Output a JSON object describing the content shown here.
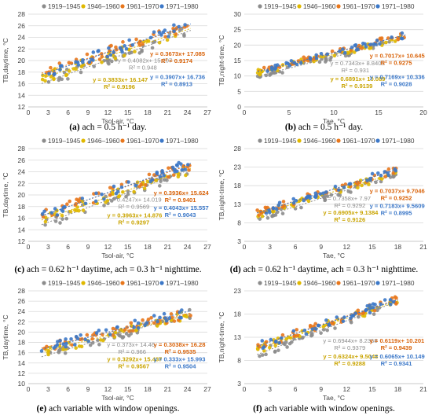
{
  "colors": {
    "1919–1945": "#8c8c8c",
    "1946–1960": "#e0b800",
    "1961–1970": "#e8771c",
    "1971–1980": "#3c78c8"
  },
  "chart_data": [
    {
      "type": "scatter",
      "caption": {
        "label": "(a)",
        "text": "ach = 0.5 h⁻¹ day."
      },
      "xlabel": "Tsol-air, °C",
      "ylabel": "TB,daytime, °C",
      "xlim": [
        0,
        27
      ],
      "ylim": [
        12,
        28
      ],
      "xticks": [
        0,
        3,
        6,
        9,
        12,
        15,
        18,
        21,
        24,
        27
      ],
      "yticks": [
        12,
        14,
        16,
        18,
        20,
        22,
        24,
        26,
        28
      ],
      "legend": [
        "1919–1945",
        "1946–1960",
        "1961–1970",
        "1971–1980"
      ],
      "series": [
        {
          "name": "1919–1945",
          "slope": 0.4082,
          "intercept": 15.207,
          "eq": "y = 0.4082x+ 15.207",
          "r2": "R² = 0.948"
        },
        {
          "name": "1946–1960",
          "slope": 0.3833,
          "intercept": 16.147,
          "eq": "y = 0.3833x+ 16.147",
          "r2": "R² = 0.9196"
        },
        {
          "name": "1961–1970",
          "slope": 0.3673,
          "intercept": 17.085,
          "eq": "y = 0.3673x+ 17.085",
          "r2": "R² = 0.9174"
        },
        {
          "name": "1971–1980",
          "slope": 0.3907,
          "intercept": 16.736,
          "eq": "y = 0.3907x+ 16.736",
          "r2": "R² = 0.8913"
        }
      ],
      "xrange": [
        2,
        24.5
      ]
    },
    {
      "type": "scatter",
      "caption": {
        "label": "(b)",
        "text": "ach = 0.5 h⁻¹ day."
      },
      "xlabel": "Tae, °C",
      "ylabel": "TB,night-time, °C",
      "xlim": [
        0,
        20
      ],
      "ylim": [
        0,
        30
      ],
      "xticks": [
        0,
        5,
        10,
        15,
        20
      ],
      "yticks": [
        0,
        5,
        10,
        15,
        20,
        25,
        30
      ],
      "legend": [
        "1919–1945",
        "1946–1960",
        "1961–1970",
        "1971–1980"
      ],
      "series": [
        {
          "name": "1919–1945",
          "slope": 0.7343,
          "intercept": 8.8405,
          "eq": "y = 0.7343x+ 8.8405",
          "r2": "R² = 0.931"
        },
        {
          "name": "1946–1960",
          "slope": 0.6891,
          "intercept": 10.089,
          "eq": "y = 0.6891x+ 10.089",
          "r2": "R² = 0.9139"
        },
        {
          "name": "1961–1970",
          "slope": 0.7017,
          "intercept": 10.645,
          "eq": "y = 0.7017x+ 10.645",
          "r2": "R² = 0.9275"
        },
        {
          "name": "1971–1980",
          "slope": 0.7169,
          "intercept": 10.336,
          "eq": "y = 0.7169x+ 10.336",
          "r2": "R² = 0.9028"
        }
      ],
      "xrange": [
        1.5,
        18
      ]
    },
    {
      "type": "scatter",
      "caption": {
        "label": "(c)",
        "text": "ach = 0.62 h⁻¹ daytime, ach = 0.3 h⁻¹ nighttime."
      },
      "xlabel": "Tsol-air, °C",
      "ylabel": "TB,daytime, °C",
      "xlim": [
        0,
        27
      ],
      "ylim": [
        12,
        28
      ],
      "xticks": [
        0,
        3,
        6,
        9,
        12,
        15,
        18,
        21,
        24,
        27
      ],
      "yticks": [
        12,
        14,
        16,
        18,
        20,
        22,
        24,
        26,
        28
      ],
      "legend": [
        "1919–1945",
        "1946–1960",
        "1961–1970",
        "1971–1980"
      ],
      "series": [
        {
          "name": "1919–1945",
          "slope": 0.4247,
          "intercept": 14.019,
          "eq": "y = 0.4247x+ 14.019",
          "r2": "R² = 0.9569"
        },
        {
          "name": "1946–1960",
          "slope": 0.3963,
          "intercept": 14.876,
          "eq": "y = 0.3963x+ 14.876",
          "r2": "R² = 0.9297"
        },
        {
          "name": "1961–1970",
          "slope": 0.3936,
          "intercept": 15.624,
          "eq": "y = 0.3936x+ 15.624",
          "r2": "R² = 0.9401"
        },
        {
          "name": "1971–1980",
          "slope": 0.4043,
          "intercept": 15.557,
          "eq": "y = 0.4043x+ 15.557",
          "r2": "R² = 0.9043"
        }
      ],
      "xrange": [
        2,
        24.5
      ]
    },
    {
      "type": "scatter",
      "caption": {
        "label": "(d)",
        "text": "ach = 0.62 h⁻¹ daytime, ach = 0.3 h⁻¹ nighttime."
      },
      "xlabel": "Tae, °C",
      "ylabel": "TB,night-time, °C",
      "xlim": [
        0,
        21
      ],
      "ylim": [
        3,
        28
      ],
      "xticks": [
        0,
        3,
        6,
        9,
        12,
        15,
        18,
        21
      ],
      "yticks": [
        3,
        8,
        13,
        18,
        23,
        28
      ],
      "legend": [
        "1919–1945",
        "1946–1960",
        "1961–1970",
        "1971–1980"
      ],
      "series": [
        {
          "name": "1919–1945",
          "slope": 0.7358,
          "intercept": 7.97,
          "eq": "y = 0.7358x+ 7.97",
          "r2": "R² = 0.9292"
        },
        {
          "name": "1946–1960",
          "slope": 0.6905,
          "intercept": 9.1384,
          "eq": "y = 0.6905x+ 9.1384",
          "r2": "R² = 0.9126"
        },
        {
          "name": "1961–1970",
          "slope": 0.7037,
          "intercept": 9.7046,
          "eq": "y = 0.7037x+ 9.7046",
          "r2": "R² = 0.9252"
        },
        {
          "name": "1971–1980",
          "slope": 0.7183,
          "intercept": 9.5609,
          "eq": "y = 0.7183x+ 9.5609",
          "r2": "R² = 0.8995"
        }
      ],
      "xrange": [
        1.5,
        18
      ]
    },
    {
      "type": "scatter",
      "caption": {
        "label": "(e)",
        "text": "ach variable with window openings."
      },
      "xlabel": "Tsol-air, °C",
      "ylabel": "TB,daytime, °C",
      "xlim": [
        0,
        27
      ],
      "ylim": [
        10,
        28
      ],
      "xticks": [
        0,
        3,
        6,
        9,
        12,
        15,
        18,
        21,
        24,
        27
      ],
      "yticks": [
        10,
        12,
        14,
        16,
        18,
        20,
        22,
        24,
        26,
        28
      ],
      "legend": [
        "1919–1945",
        "1946–1960",
        "1961–1970",
        "1971–1980"
      ],
      "series": [
        {
          "name": "1919–1945",
          "slope": 0.373,
          "intercept": 14.46,
          "eq": "y = 0.373x+ 14.46",
          "r2": "R² = 0.966"
        },
        {
          "name": "1946–1960",
          "slope": 0.3292,
          "intercept": 15.437,
          "eq": "y = 0.3292x+ 15.437",
          "r2": "R² = 0.9567"
        },
        {
          "name": "1961–1970",
          "slope": 0.3038,
          "intercept": 16.28,
          "eq": "y = 0.3038x+ 16.28",
          "r2": "R² = 0.9535"
        },
        {
          "name": "1971–1980",
          "slope": 0.333,
          "intercept": 15.993,
          "eq": "y = 0.333x+ 15.993",
          "r2": "R² = 0.9504"
        }
      ],
      "xrange": [
        2,
        24.5
      ]
    },
    {
      "type": "scatter",
      "caption": {
        "label": "(f)",
        "text": "ach variable with window openings."
      },
      "xlabel": "Tae, °C",
      "ylabel": "TB,night-time, °C",
      "xlim": [
        0,
        21
      ],
      "ylim": [
        3,
        23
      ],
      "xticks": [
        0,
        3,
        6,
        9,
        12,
        15,
        18,
        21
      ],
      "yticks": [
        3,
        8,
        13,
        18,
        23
      ],
      "legend": [
        "1919–1945",
        "1946–1960",
        "1961–1970",
        "1971–1980"
      ],
      "series": [
        {
          "name": "1919–1945",
          "slope": 0.6944,
          "intercept": 8.2358,
          "eq": "y = 0.6944x+ 8.2358",
          "r2": "R² = 0.9379"
        },
        {
          "name": "1946–1960",
          "slope": 0.6324,
          "intercept": 9.5048,
          "eq": "y = 0.6324x+ 9.5048",
          "r2": "R² = 0.9288"
        },
        {
          "name": "1961–1970",
          "slope": 0.6119,
          "intercept": 10.201,
          "eq": "y = 0.6119x+ 10.201",
          "r2": "R² = 0.9439"
        },
        {
          "name": "1971–1980",
          "slope": 0.6065,
          "intercept": 10.149,
          "eq": "y = 0.6065x+ 10.149",
          "r2": "R² = 0.9341"
        }
      ],
      "xrange": [
        1.5,
        18
      ]
    }
  ]
}
